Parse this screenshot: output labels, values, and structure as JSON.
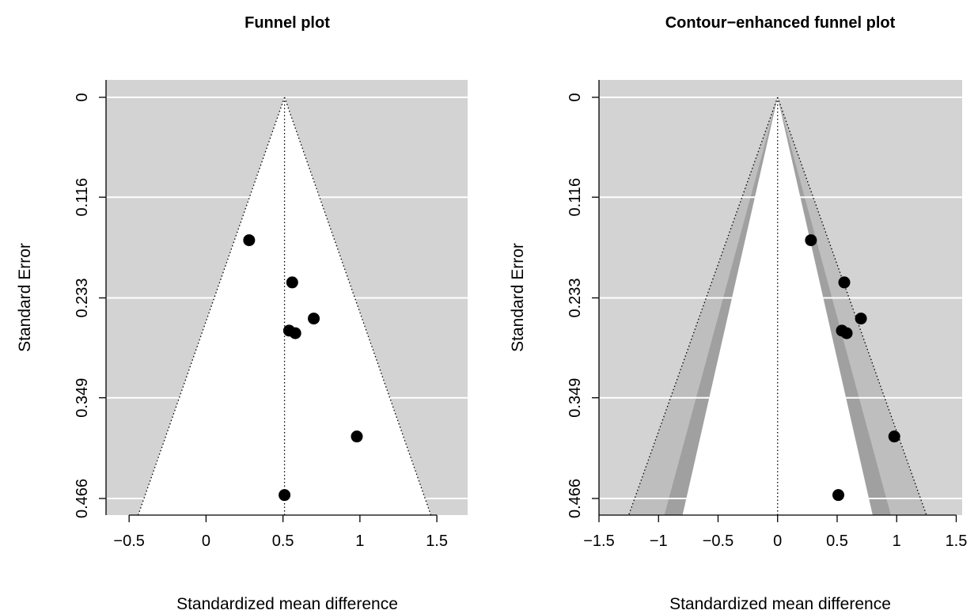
{
  "chart_data": [
    {
      "type": "scatter",
      "title": "Funnel plot",
      "xlabel": "Standardized mean difference",
      "ylabel": "Standard Error",
      "xlim": [
        -0.65,
        1.7
      ],
      "ylim": [
        0.466,
        0
      ],
      "x_ticks": [
        "−0.5",
        "0",
        "0.5",
        "1",
        "1.5"
      ],
      "x_tick_values": [
        -0.5,
        0,
        0.5,
        1,
        1.5
      ],
      "y_ticks": [
        "0",
        "0.116",
        "0.233",
        "0.349",
        "0.466"
      ],
      "y_tick_values": [
        0,
        0.116,
        0.233,
        0.349,
        0.466
      ],
      "funnel_center": 0.51,
      "z_outer": 1.96,
      "points": [
        {
          "x": 0.28,
          "y": 0.166
        },
        {
          "x": 0.56,
          "y": 0.215
        },
        {
          "x": 0.7,
          "y": 0.257
        },
        {
          "x": 0.54,
          "y": 0.271
        },
        {
          "x": 0.58,
          "y": 0.274
        },
        {
          "x": 0.98,
          "y": 0.394
        },
        {
          "x": 0.51,
          "y": 0.462
        }
      ],
      "colors": {
        "background": "#d3d3d3",
        "inner": "#ffffff",
        "grid": "#ffffff",
        "point": "#000000"
      }
    },
    {
      "type": "scatter",
      "title": "Contour−enhanced funnel plot",
      "xlabel": "Standardized mean difference",
      "ylabel": "Standard Error",
      "xlim": [
        -1.5,
        1.55
      ],
      "ylim": [
        0.466,
        0
      ],
      "x_ticks": [
        "−1.5",
        "−1",
        "−0.5",
        "0",
        "0.5",
        "1",
        "1.5"
      ],
      "x_tick_values": [
        -1.5,
        -1,
        -0.5,
        0,
        0.5,
        1,
        1.5
      ],
      "y_ticks": [
        "0",
        "0.116",
        "0.233",
        "0.349",
        "0.466"
      ],
      "y_tick_values": [
        0,
        0.116,
        0.233,
        0.349,
        0.466
      ],
      "funnel_center": 0,
      "contours_z": [
        1.645,
        1.96,
        2.576
      ],
      "points": [
        {
          "x": 0.28,
          "y": 0.166
        },
        {
          "x": 0.56,
          "y": 0.215
        },
        {
          "x": 0.7,
          "y": 0.257
        },
        {
          "x": 0.54,
          "y": 0.271
        },
        {
          "x": 0.58,
          "y": 0.274
        },
        {
          "x": 0.98,
          "y": 0.394
        },
        {
          "x": 0.51,
          "y": 0.462
        }
      ],
      "colors": {
        "background": "#d3d3d3",
        "contour_90_95": "#a0a0a0",
        "contour_95_99": "#bebebe",
        "inner": "#ffffff",
        "grid": "#ffffff",
        "point": "#000000"
      }
    }
  ]
}
